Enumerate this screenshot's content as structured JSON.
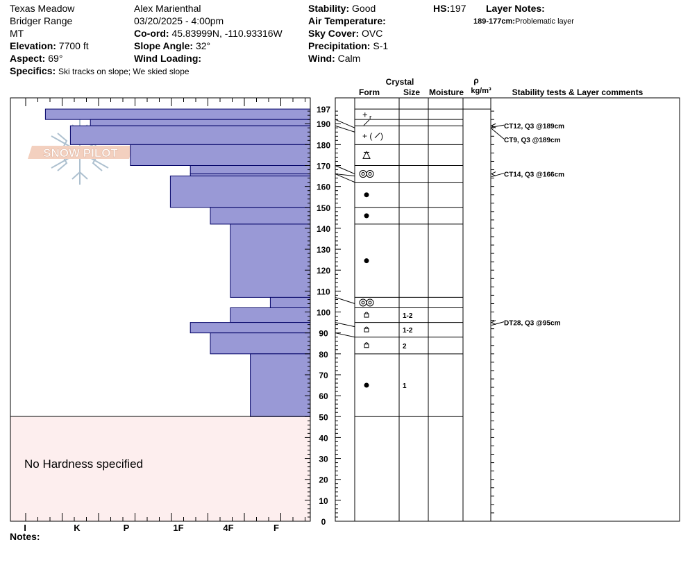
{
  "header": {
    "location": "Texas Meadow",
    "range": "Bridger Range",
    "state": "MT",
    "elevation_label": "Elevation:",
    "elevation": "7700 ft",
    "aspect_label": "Aspect:",
    "aspect": "69°",
    "specifics_label": "Specifics:",
    "specifics": "Ski tracks on slope; We skied slope",
    "observer": "Alex Marienthal",
    "datetime": "03/20/2025 - 4:00pm",
    "coord_label": "Co-ord:",
    "coord": "45.83999N, -110.93316W",
    "slope_label": "Slope Angle:",
    "slope": "32°",
    "wind_loading_label": "Wind Loading:",
    "wind_loading": "",
    "stability_label": "Stability:",
    "stability": "Good",
    "air_temp_label": "Air Temperature:",
    "air_temp": "",
    "sky_label": "Sky Cover:",
    "sky": "OVC",
    "precip_label": "Precipitation:",
    "precip": "S-1",
    "wind_label": "Wind:",
    "wind": "Calm",
    "hs_label": "HS:",
    "hs": "197",
    "layer_notes_label": "Layer Notes:",
    "layer_note_range": "189-177cm:",
    "layer_note_text": "Problematic layer"
  },
  "logo": {
    "text": "SNOW PILOT"
  },
  "no_hardness": "No Hardness specified",
  "notes_label": "Notes:",
  "colors": {
    "hardness_fill": "#9999d6",
    "hardness_stroke": "#000066",
    "no_hardness_bg": "#fdeeee"
  },
  "chart_data": {
    "type": "bar",
    "title": "",
    "ylabel": "",
    "ylim": [
      0,
      200
    ],
    "y_ticks": [
      0,
      10,
      20,
      30,
      40,
      50,
      60,
      70,
      80,
      90,
      100,
      110,
      120,
      130,
      140,
      150,
      160,
      170,
      180,
      190,
      197
    ],
    "hardness_scale": [
      "I",
      "K",
      "P",
      "1F",
      "4F",
      "F"
    ],
    "hardness_unit_note": "0=left edge, 6=right edge",
    "layers": [
      {
        "top": 197,
        "bottom": 192,
        "hardness": 0.7
      },
      {
        "top": 192,
        "bottom": 189,
        "hardness": 1.6
      },
      {
        "top": 189,
        "bottom": 180,
        "hardness": 1.2
      },
      {
        "top": 180,
        "bottom": 170,
        "hardness": 2.4
      },
      {
        "top": 170,
        "bottom": 166,
        "hardness": 3.6
      },
      {
        "top": 166,
        "bottom": 165,
        "hardness": 3.6
      },
      {
        "top": 165,
        "bottom": 150,
        "hardness": 3.2
      },
      {
        "top": 150,
        "bottom": 142,
        "hardness": 4.0
      },
      {
        "top": 142,
        "bottom": 107,
        "hardness": 4.4
      },
      {
        "top": 107,
        "bottom": 102,
        "hardness": 5.2
      },
      {
        "top": 102,
        "bottom": 95,
        "hardness": 4.4
      },
      {
        "top": 95,
        "bottom": 90,
        "hardness": 3.6
      },
      {
        "top": 90,
        "bottom": 80,
        "hardness": 4.0
      },
      {
        "top": 80,
        "bottom": 50,
        "hardness": 4.8
      }
    ],
    "table_headers": {
      "crystal": "Crystal",
      "form": "Form",
      "size": "Size",
      "moisture": "Moisture",
      "rho": "ρ",
      "density_unit": "kg/m³",
      "stability": "Stability tests & Layer comments"
    },
    "table_layers": [
      {
        "top": 197,
        "bottom": 192,
        "form": "+r",
        "size": ""
      },
      {
        "top": 192,
        "bottom": 189,
        "form": "/",
        "size": ""
      },
      {
        "top": 189,
        "bottom": 180,
        "form": "+(/)",
        "size": ""
      },
      {
        "top": 180,
        "bottom": 170,
        "form": "facet-surface",
        "size": ""
      },
      {
        "top": 170,
        "bottom": 162,
        "form": "melt-forms",
        "size": ""
      },
      {
        "top": 162,
        "bottom": 150,
        "form": "round",
        "size": ""
      },
      {
        "top": 150,
        "bottom": 142,
        "form": "round",
        "size": ""
      },
      {
        "top": 142,
        "bottom": 107,
        "form": "round",
        "size": ""
      },
      {
        "top": 107,
        "bottom": 102,
        "form": "melt-forms",
        "size": ""
      },
      {
        "top": 102,
        "bottom": 95,
        "form": "facet",
        "size": "1-2"
      },
      {
        "top": 95,
        "bottom": 88,
        "form": "facet",
        "size": "1-2"
      },
      {
        "top": 88,
        "bottom": 80,
        "form": "facet",
        "size": "2"
      },
      {
        "top": 80,
        "bottom": 50,
        "form": "round",
        "size": "1"
      }
    ],
    "stability_tests": [
      {
        "label": "CT12, Q3 @189cm",
        "depth": 189
      },
      {
        "label": "CT9, Q3 @189cm",
        "depth": 189
      },
      {
        "label": "CT14, Q3 @166cm",
        "depth": 166
      },
      {
        "label": "DT28, Q3 @95cm",
        "depth": 95
      }
    ]
  }
}
